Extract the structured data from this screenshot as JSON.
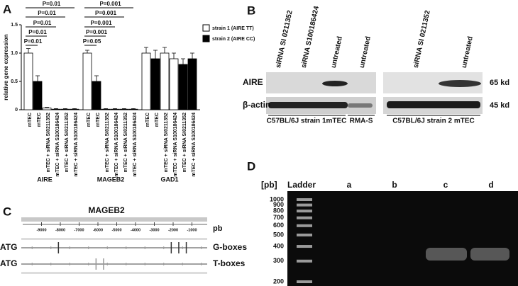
{
  "panel_labels": [
    "A",
    "B",
    "C",
    "D"
  ],
  "chart_data": {
    "type": "bar",
    "ylabel": "relative gene expression",
    "ylim": [
      0,
      1.5
    ],
    "yticks": [
      0,
      0.5,
      {
        "value": 1,
        "label": "1.0"
      },
      1.5
    ],
    "groups": [
      "AIRE",
      "MAGEB2",
      "GAD1"
    ],
    "categories": [
      "mTEC",
      "mTEC",
      "mTEC + siRNA SI0211352",
      "mTEC + siRNA S100186424",
      "mTEC + siRNA SI0211352",
      "mTEC + siRNA S100186424",
      "mTEC",
      "mTEC",
      "mTEC + siRNA SI0211352",
      "mTEC + siRNA S100186424",
      "mTEC + siRNA SI0211352",
      "mTEC + siRNA S100186424",
      "mTEC",
      "mTEC",
      "mTEC + siRNA SI0211352",
      "mTEC + siRNA S100186424",
      "mTEC + siRNA SI0211352",
      "mTEC + siRNA S100186424"
    ],
    "series": [
      {
        "name": "strain 1 (AIRE TT)",
        "color": "#ffffff",
        "values": [
          1.0,
          null,
          0.03,
          0.01,
          null,
          null,
          1.0,
          null,
          0.01,
          0.01,
          null,
          null,
          1.0,
          null,
          1.0,
          0.9,
          null,
          null
        ],
        "errors": [
          0.08,
          null,
          0.01,
          0.01,
          null,
          null,
          0.05,
          null,
          0.01,
          0.01,
          null,
          null,
          0.1,
          null,
          0.1,
          0.1,
          null,
          null
        ]
      },
      {
        "name": "strain 2 (AIRE CC)",
        "color": "#000000",
        "values": [
          null,
          0.5,
          null,
          null,
          0.01,
          0.01,
          null,
          0.5,
          null,
          null,
          0.01,
          0.01,
          null,
          0.9,
          null,
          null,
          0.8,
          0.9
        ],
        "errors": [
          null,
          0.1,
          null,
          null,
          0.01,
          0.01,
          null,
          0.1,
          null,
          null,
          0.01,
          0.01,
          null,
          0.15,
          null,
          null,
          0.1,
          0.1
        ]
      }
    ],
    "significance": [
      [
        "P=0.01",
        "P=0.01",
        "P=0.01",
        "P=0.01",
        "P=0.01"
      ],
      [
        "P=0.05",
        "P=0.001",
        "P=0.001",
        "P=0.001",
        "P=0.001"
      ]
    ]
  },
  "blot": {
    "lanes": [
      "siRNA SI 0211352",
      "siRNA S100186424",
      "untreated",
      "untreated",
      "siRNA SI 0211352",
      "untreated"
    ],
    "rows": [
      "AIRE",
      "β-actin"
    ],
    "sizes": [
      "65 kd",
      "45 kd"
    ],
    "groups": [
      "C57BL/6J strain 1mTEC",
      "RMA-S",
      "C57BL/6J strain 2 mTEC"
    ]
  },
  "diagram": {
    "title": "MAGEB2",
    "unit": "pb",
    "xlim": [
      -10000,
      0
    ],
    "xticks": [
      -9000,
      -8000,
      -7000,
      -6000,
      -5000,
      -4000,
      -3000,
      -2000,
      -1000
    ],
    "rows": [
      {
        "start": "ATG",
        "label": "G-boxes",
        "positions": [
          -8100,
          -2100,
          -1700,
          -1300
        ]
      },
      {
        "start": "ATG",
        "label": "T-boxes",
        "positions": [
          -6100,
          -5700
        ]
      }
    ]
  },
  "gel": {
    "unit": "[pb]",
    "ladder": "Ladder",
    "lanes": [
      "a",
      "b",
      "c",
      "d"
    ],
    "sizes": [
      1000,
      900,
      800,
      700,
      600,
      500,
      400,
      300,
      200
    ]
  }
}
